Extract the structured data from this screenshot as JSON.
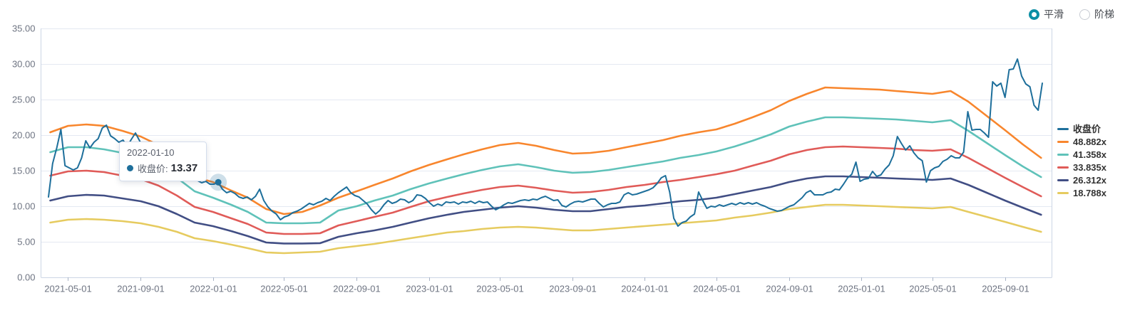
{
  "controls": {
    "accent_color": "#0D8FA5",
    "options": [
      {
        "label": "平滑",
        "selected": true
      },
      {
        "label": "阶梯",
        "selected": false
      }
    ]
  },
  "chart_data": {
    "type": "line",
    "title": "",
    "legend_position": "right",
    "grid": true,
    "colors": {
      "gridline": "#e4e9f2",
      "axis_border": "#ccd6e5",
      "tick": "#aab4c6",
      "axis_text": "#6e7482"
    },
    "x_axis": {
      "type": "time",
      "domain": [
        "2021-03-29",
        "2025-11-03"
      ],
      "ticks": [
        "2021-05-01",
        "2021-09-01",
        "2022-01-01",
        "2022-05-01",
        "2022-09-01",
        "2023-01-01",
        "2023-05-01",
        "2023-09-01",
        "2024-01-01",
        "2024-05-01",
        "2024-09-01",
        "2025-01-01",
        "2025-05-01",
        "2025-09-01"
      ]
    },
    "y_axis": {
      "min": 0,
      "max": 35,
      "tick_step": 5,
      "tick_labels": [
        "0.00",
        "5.00",
        "10.00",
        "15.00",
        "20.00",
        "25.00",
        "30.00",
        "35.00"
      ]
    },
    "band_dates": [
      "2021-04-01",
      "2021-05-01",
      "2021-06-01",
      "2021-07-01",
      "2021-08-01",
      "2021-09-01",
      "2021-10-01",
      "2021-11-01",
      "2021-12-01",
      "2022-01-01",
      "2022-02-01",
      "2022-03-01",
      "2022-04-01",
      "2022-05-01",
      "2022-06-01",
      "2022-07-01",
      "2022-08-01",
      "2022-09-01",
      "2022-10-01",
      "2022-11-01",
      "2022-12-01",
      "2023-01-01",
      "2023-02-01",
      "2023-03-01",
      "2023-04-01",
      "2023-05-01",
      "2023-06-01",
      "2023-07-01",
      "2023-08-01",
      "2023-09-01",
      "2023-10-01",
      "2023-11-01",
      "2023-12-01",
      "2024-01-01",
      "2024-02-01",
      "2024-03-01",
      "2024-04-01",
      "2024-05-01",
      "2024-06-01",
      "2024-07-01",
      "2024-08-01",
      "2024-09-01",
      "2024-10-01",
      "2024-11-01",
      "2024-12-01",
      "2025-01-01",
      "2025-02-01",
      "2025-03-01",
      "2025-04-01",
      "2025-05-01",
      "2025-06-01",
      "2025-07-01",
      "2025-08-01",
      "2025-09-01",
      "2025-10-01",
      "2025-11-01"
    ],
    "series": [
      {
        "key": "close",
        "name": "收盘价",
        "color": "#1E6F9B",
        "width": 2,
        "start": "2021-03-29",
        "interval_days": 7,
        "values": [
          11.3,
          16.0,
          18.2,
          20.8,
          15.7,
          15.4,
          15.1,
          15.4,
          16.8,
          19.2,
          18.2,
          19.0,
          19.5,
          21.0,
          21.4,
          19.9,
          19.5,
          19.0,
          19.3,
          18.4,
          19.4,
          20.3,
          19.2,
          18.1,
          17.3,
          16.9,
          17.3,
          16.7,
          16.9,
          16.3,
          15.9,
          16.1,
          15.7,
          15.2,
          15.6,
          18.2,
          13.6,
          13.3,
          13.5,
          13.1,
          13.1,
          13.37,
          12.4,
          11.9,
          12.1,
          11.8,
          11.3,
          11.1,
          11.3,
          10.9,
          11.4,
          12.4,
          10.8,
          9.9,
          9.3,
          8.9,
          8.1,
          8.5,
          8.7,
          9.1,
          9.3,
          9.6,
          10.0,
          10.4,
          10.2,
          10.5,
          10.7,
          11.1,
          10.8,
          11.4,
          11.9,
          12.3,
          12.7,
          11.9,
          11.5,
          11.3,
          10.8,
          10.3,
          9.5,
          8.9,
          9.4,
          10.2,
          10.8,
          10.4,
          10.6,
          11.0,
          10.9,
          10.5,
          10.8,
          11.6,
          11.5,
          11.1,
          10.5,
          10.0,
          10.3,
          10.1,
          10.6,
          10.5,
          10.6,
          10.3,
          10.6,
          10.5,
          10.7,
          10.4,
          10.7,
          10.5,
          10.6,
          10.0,
          9.5,
          9.8,
          10.2,
          10.5,
          10.4,
          10.6,
          10.8,
          10.9,
          10.8,
          11.0,
          10.9,
          11.2,
          11.4,
          11.1,
          10.8,
          10.9,
          10.1,
          9.9,
          10.3,
          10.6,
          10.7,
          10.6,
          10.8,
          11.0,
          11.0,
          10.4,
          9.9,
          10.2,
          10.4,
          10.4,
          10.6,
          11.6,
          11.9,
          11.6,
          11.7,
          11.9,
          12.1,
          12.3,
          12.6,
          13.2,
          14.0,
          14.3,
          12.0,
          8.3,
          7.2,
          7.7,
          7.9,
          8.5,
          8.9,
          12.0,
          10.8,
          9.7,
          10.0,
          9.9,
          10.2,
          10.0,
          10.2,
          10.4,
          10.2,
          10.5,
          10.3,
          10.5,
          10.3,
          10.5,
          10.2,
          10.0,
          9.7,
          9.5,
          9.3,
          9.4,
          9.7,
          10.0,
          10.2,
          10.7,
          11.2,
          11.9,
          12.2,
          11.6,
          11.6,
          11.6,
          11.9,
          12.0,
          12.4,
          12.3,
          13.1,
          14.0,
          14.5,
          16.2,
          13.5,
          13.8,
          13.9,
          14.9,
          14.2,
          14.4,
          15.2,
          15.8,
          17.1,
          19.8,
          18.8,
          17.9,
          18.5,
          17.5,
          16.8,
          16.4,
          13.4,
          15.0,
          15.4,
          15.6,
          16.3,
          16.6,
          17.1,
          16.8,
          16.8,
          17.6,
          23.3,
          20.7,
          20.8,
          20.8,
          20.3,
          19.7,
          27.5,
          26.9,
          27.3,
          25.3,
          29.2,
          29.3,
          30.7,
          28.3,
          27.2,
          26.8,
          24.2,
          23.5,
          27.3
        ]
      },
      {
        "key": "band-48882x",
        "name": "48.882x",
        "color": "#F8862D",
        "width": 2.6,
        "band_values": [
          20.4,
          21.3,
          21.5,
          21.3,
          20.6,
          19.8,
          18.6,
          16.8,
          14.1,
          13.4,
          12.2,
          11.2,
          9.6,
          8.9,
          9.2,
          10.1,
          11.2,
          12.1,
          13.0,
          13.9,
          14.9,
          15.8,
          16.6,
          17.3,
          18.0,
          18.6,
          18.9,
          18.5,
          17.9,
          17.4,
          17.5,
          17.8,
          18.3,
          18.8,
          19.3,
          19.9,
          20.4,
          20.8,
          21.6,
          22.5,
          23.5,
          24.8,
          25.8,
          26.7,
          26.6,
          26.5,
          26.4,
          26.2,
          26.0,
          25.8,
          26.2,
          24.7,
          22.7,
          20.7,
          18.7,
          16.8
        ]
      },
      {
        "key": "band-41358x",
        "name": "41.358x",
        "color": "#5FC2B9",
        "width": 2.6,
        "band_values": [
          17.6,
          18.3,
          18.3,
          18.0,
          17.5,
          16.9,
          15.8,
          14.0,
          12.1,
          11.2,
          10.2,
          9.2,
          7.7,
          7.6,
          7.6,
          7.7,
          9.4,
          10.0,
          10.8,
          11.5,
          12.4,
          13.2,
          13.9,
          14.5,
          15.1,
          15.6,
          15.9,
          15.5,
          15.0,
          14.7,
          14.8,
          15.1,
          15.5,
          15.9,
          16.3,
          16.8,
          17.2,
          17.7,
          18.4,
          19.2,
          20.1,
          21.2,
          21.9,
          22.5,
          22.5,
          22.4,
          22.3,
          22.2,
          22.0,
          21.8,
          22.1,
          20.6,
          18.9,
          17.2,
          15.6,
          14.1
        ]
      },
      {
        "key": "band-33835x",
        "name": "33.835x",
        "color": "#E05B58",
        "width": 2.6,
        "band_values": [
          14.3,
          14.9,
          15.0,
          14.8,
          14.3,
          13.8,
          12.9,
          11.5,
          9.9,
          9.2,
          8.3,
          7.5,
          6.3,
          6.1,
          6.1,
          6.2,
          7.3,
          7.9,
          8.5,
          9.1,
          9.9,
          10.7,
          11.3,
          11.8,
          12.3,
          12.7,
          12.9,
          12.6,
          12.2,
          11.9,
          12.0,
          12.3,
          12.7,
          13.0,
          13.4,
          13.7,
          14.1,
          14.5,
          15.0,
          15.7,
          16.4,
          17.3,
          17.9,
          18.3,
          18.4,
          18.3,
          18.2,
          18.1,
          17.9,
          17.8,
          18.0,
          16.8,
          15.4,
          14.0,
          12.7,
          11.4
        ]
      },
      {
        "key": "band-26312x",
        "name": "26.312x",
        "color": "#414E84",
        "width": 2.6,
        "band_values": [
          10.8,
          11.4,
          11.6,
          11.5,
          11.1,
          10.7,
          10.0,
          8.9,
          7.7,
          7.2,
          6.5,
          5.8,
          4.9,
          4.75,
          4.75,
          4.8,
          5.7,
          6.2,
          6.6,
          7.1,
          7.7,
          8.3,
          8.8,
          9.2,
          9.5,
          9.8,
          10.0,
          9.8,
          9.5,
          9.3,
          9.3,
          9.6,
          9.9,
          10.1,
          10.4,
          10.7,
          10.9,
          11.2,
          11.7,
          12.2,
          12.7,
          13.4,
          13.9,
          14.2,
          14.2,
          14.1,
          14.0,
          13.9,
          13.8,
          13.7,
          13.9,
          13.0,
          11.9,
          10.8,
          9.8,
          8.8
        ]
      },
      {
        "key": "band-18788x",
        "name": "18.788x",
        "color": "#E6CB5F",
        "width": 2.6,
        "band_values": [
          7.7,
          8.1,
          8.2,
          8.1,
          7.9,
          7.6,
          7.1,
          6.4,
          5.5,
          5.1,
          4.6,
          4.1,
          3.5,
          3.4,
          3.5,
          3.6,
          4.1,
          4.4,
          4.7,
          5.1,
          5.5,
          5.9,
          6.3,
          6.5,
          6.8,
          7.0,
          7.1,
          7.0,
          6.8,
          6.6,
          6.6,
          6.8,
          7.0,
          7.2,
          7.4,
          7.6,
          7.8,
          8.0,
          8.4,
          8.7,
          9.1,
          9.6,
          9.9,
          10.2,
          10.2,
          10.1,
          10.0,
          9.9,
          9.8,
          9.7,
          9.9,
          9.2,
          8.5,
          7.8,
          7.1,
          6.4
        ]
      }
    ],
    "marker": {
      "series": "close",
      "index": 41
    },
    "tooltip": {
      "date": "2022-01-10",
      "label": "收盘价",
      "value": "13.37"
    }
  }
}
